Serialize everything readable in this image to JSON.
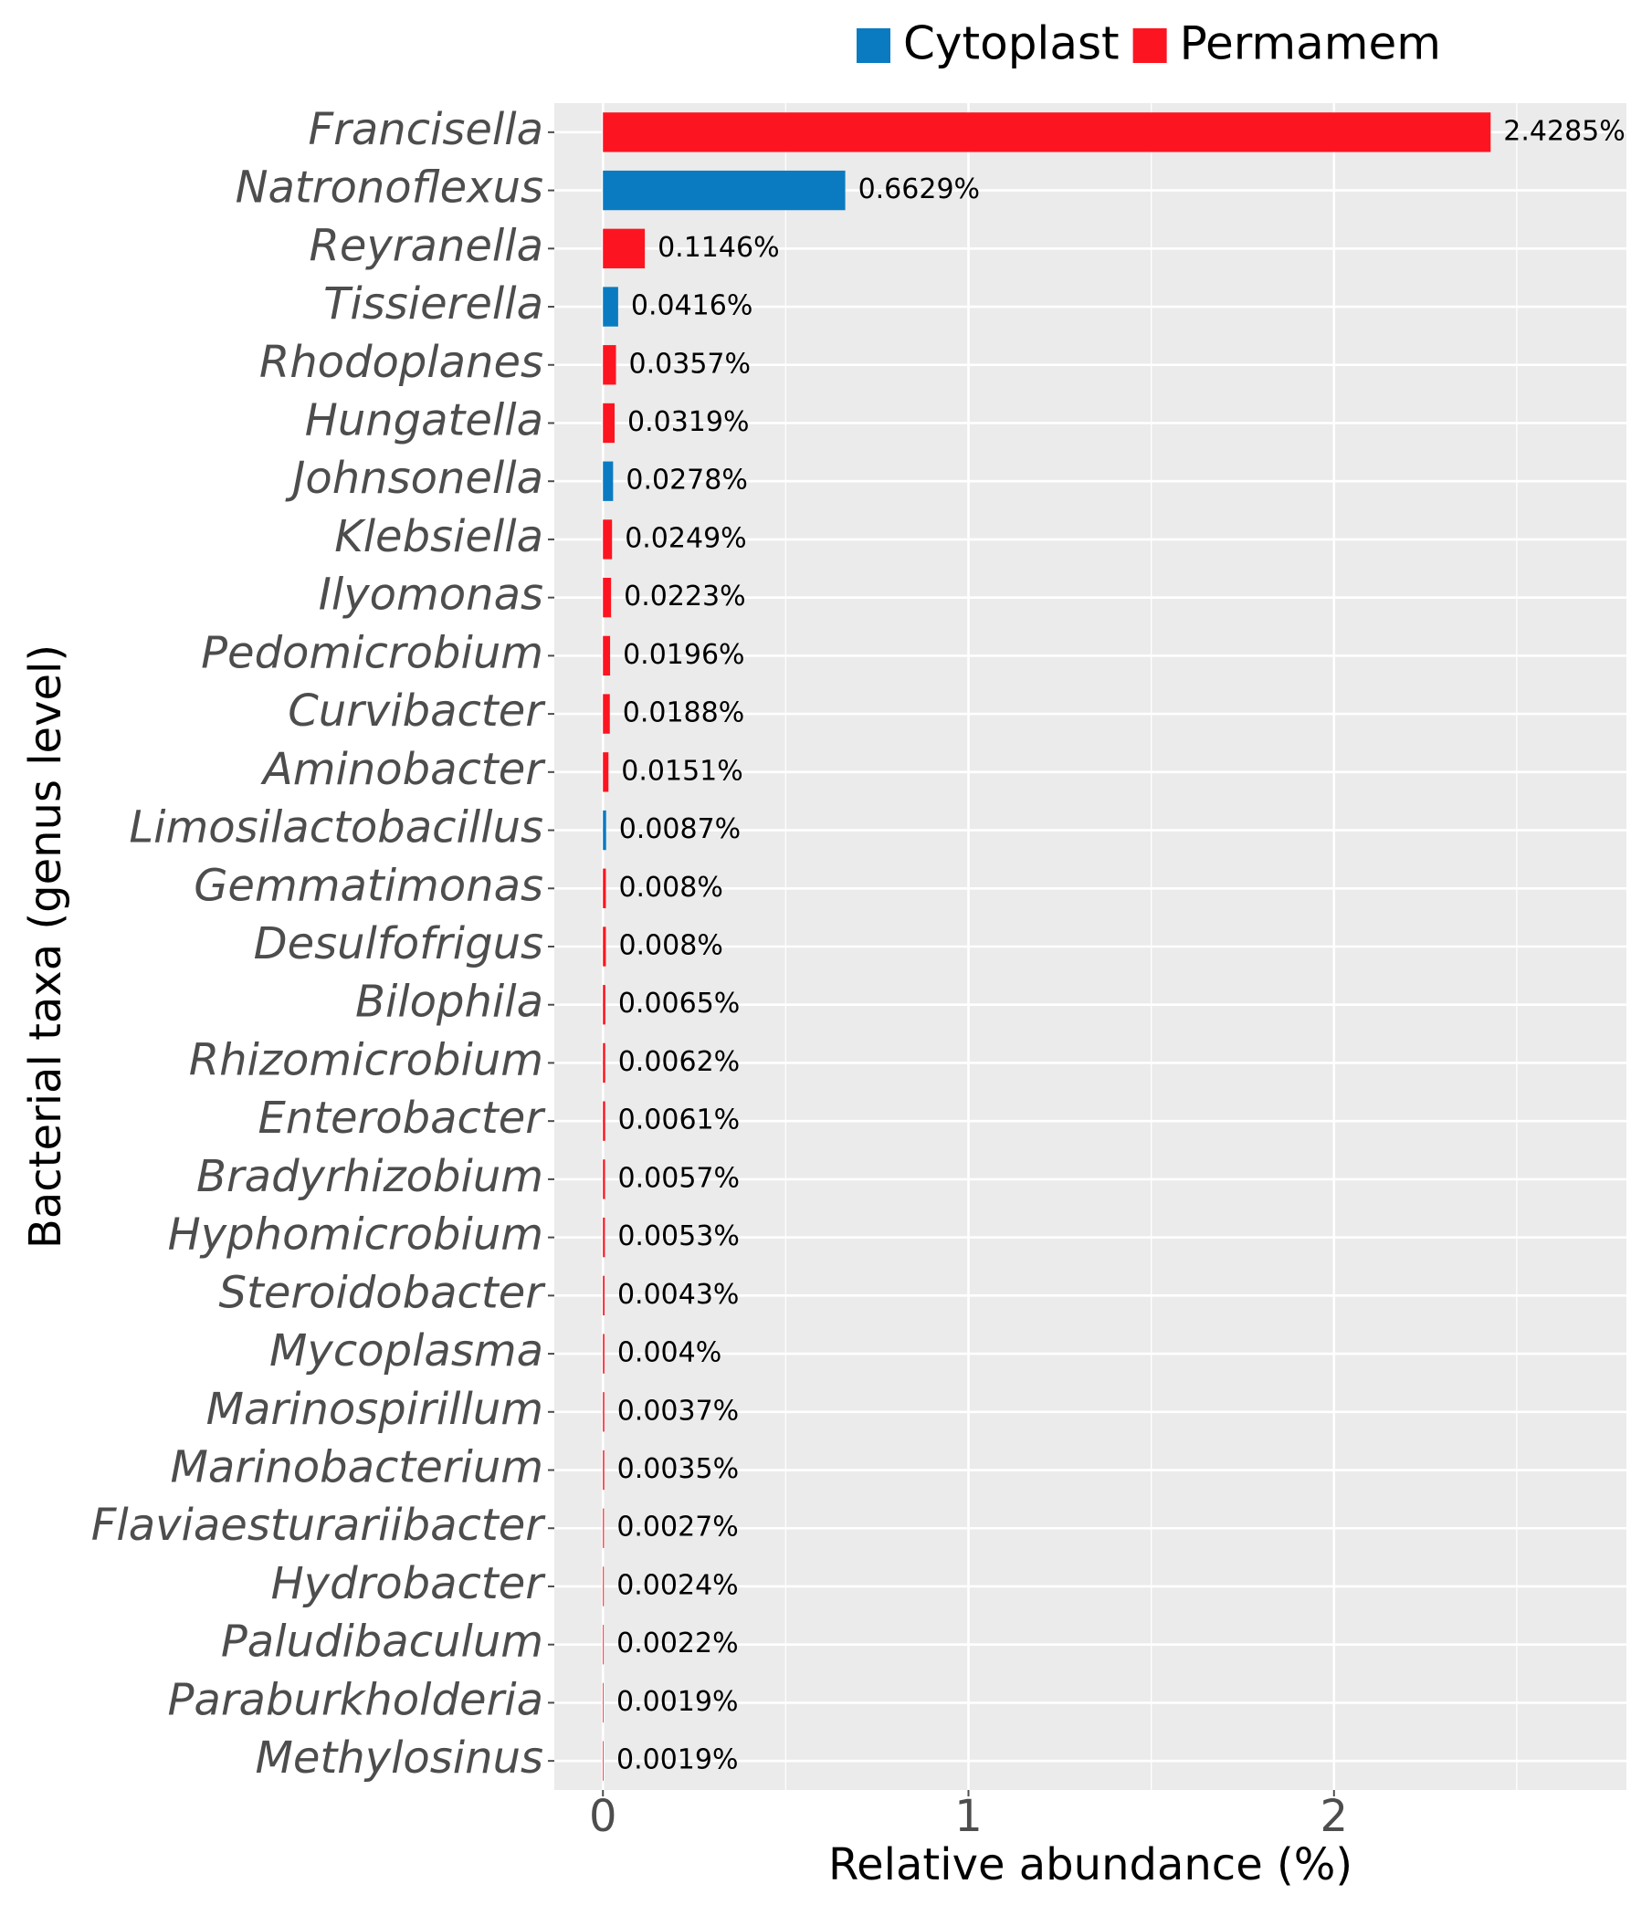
{
  "chart_data": {
    "type": "bar",
    "orientation": "horizontal",
    "x_label": "Relative abundance (%)",
    "y_label": "Bacterial taxa (genus level)",
    "categories": [
      "Francisella",
      "Natronoflexus",
      "Reyranella",
      "Tissierella",
      "Rhodoplanes",
      "Hungatella",
      "Johnsonella",
      "Klebsiella",
      "Ilyomonas",
      "Pedomicrobium",
      "Curvibacter",
      "Aminobacter",
      "Limosilactobacillus",
      "Gemmatimonas",
      "Desulfofrigus",
      "Bilophila",
      "Rhizomicrobium",
      "Enterobacter",
      "Bradyrhizobium",
      "Hyphomicrobium",
      "Steroidobacter",
      "Mycoplasma",
      "Marinospirillum",
      "Marinobacterium",
      "Flaviaesturariibacter",
      "Hydrobacter",
      "Paludibaculum",
      "Paraburkholderia",
      "Methylosinus"
    ],
    "series": [
      {
        "name": "Cytoplast",
        "color": "#0a7bc0",
        "values": [
          null,
          0.6629,
          null,
          0.0416,
          null,
          null,
          0.0278,
          null,
          null,
          null,
          null,
          null,
          0.0087,
          null,
          null,
          null,
          null,
          null,
          null,
          null,
          null,
          null,
          null,
          null,
          null,
          null,
          null,
          null,
          null
        ],
        "value_labels": [
          null,
          "0.6629%",
          null,
          "0.0416%",
          null,
          null,
          "0.0278%",
          null,
          null,
          null,
          null,
          null,
          "0.0087%",
          null,
          null,
          null,
          null,
          null,
          null,
          null,
          null,
          null,
          null,
          null,
          null,
          null,
          null,
          null,
          null
        ]
      },
      {
        "name": "Permamem",
        "color": "#fc1520",
        "values": [
          2.4285,
          null,
          0.1146,
          null,
          0.0357,
          0.0319,
          null,
          0.0249,
          0.0223,
          0.0196,
          0.0188,
          0.0151,
          null,
          0.008,
          0.008,
          0.0065,
          0.0062,
          0.0061,
          0.0057,
          0.0053,
          0.0043,
          0.004,
          0.0037,
          0.0035,
          0.0027,
          0.0024,
          0.0022,
          0.0019,
          0.0019
        ],
        "value_labels": [
          "2.4285%",
          null,
          "0.1146%",
          null,
          "0.0357%",
          "0.0319%",
          null,
          "0.0249%",
          "0.0223%",
          "0.0196%",
          "0.0188%",
          "0.0151%",
          null,
          "0.008%",
          "0.008%",
          "0.0065%",
          "0.0062%",
          "0.0061%",
          "0.0057%",
          "0.0053%",
          "0.0043%",
          "0.004%",
          "0.0037%",
          "0.0035%",
          "0.0027%",
          "0.0024%",
          "0.0022%",
          "0.0019%",
          "0.0019%"
        ]
      }
    ],
    "xlim": [
      -0.133,
      2.8
    ],
    "xticks": [
      0,
      1,
      2
    ],
    "grid": true,
    "legend": "top"
  }
}
